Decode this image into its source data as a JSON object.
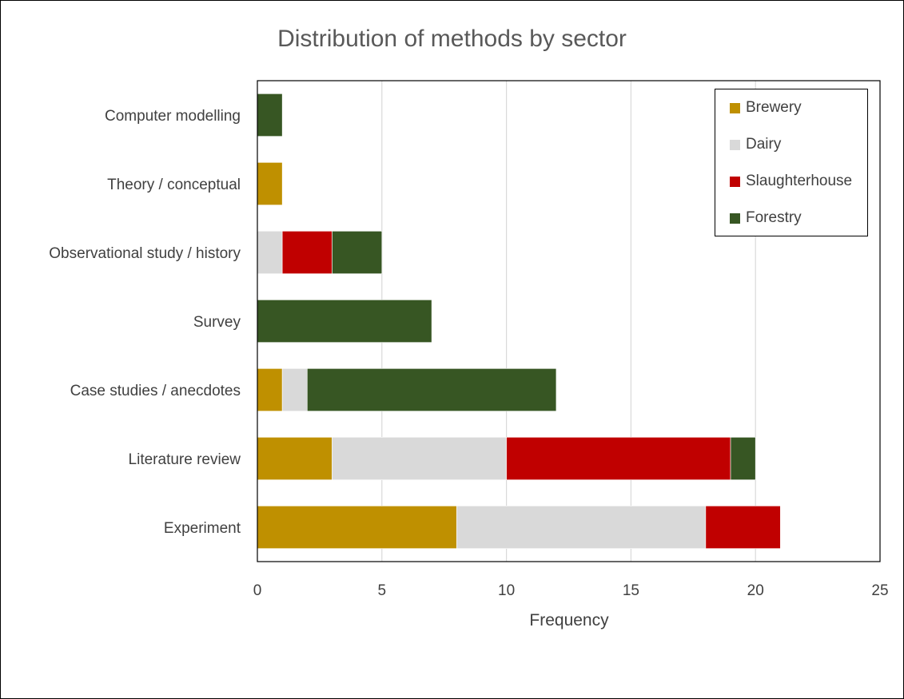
{
  "chart_data": {
    "type": "bar",
    "orientation": "horizontal",
    "stacked": true,
    "title": "Distribution of methods by sector",
    "xlabel": "Frequency",
    "ylabel": "",
    "xlim": [
      0,
      25
    ],
    "x_ticks": [
      0,
      5,
      10,
      15,
      20,
      25
    ],
    "grid": true,
    "legend_position": "top-right",
    "categories": [
      "Computer modelling",
      "Theory / conceptual",
      "Observational study / history",
      "Survey",
      "Case studies / anecdotes",
      "Literature review",
      "Experiment"
    ],
    "series": [
      {
        "name": "Brewery",
        "color": "#BF9000",
        "values": [
          0,
          1,
          0,
          0,
          1,
          3,
          8
        ]
      },
      {
        "name": "Dairy",
        "color": "#D9D9D9",
        "values": [
          0,
          0,
          1,
          0,
          1,
          7,
          10
        ]
      },
      {
        "name": "Slaughterhouse",
        "color": "#C00000",
        "values": [
          0,
          0,
          2,
          0,
          0,
          9,
          3
        ]
      },
      {
        "name": "Forestry",
        "color": "#375623",
        "values": [
          1,
          0,
          2,
          7,
          10,
          1,
          0
        ]
      }
    ]
  }
}
